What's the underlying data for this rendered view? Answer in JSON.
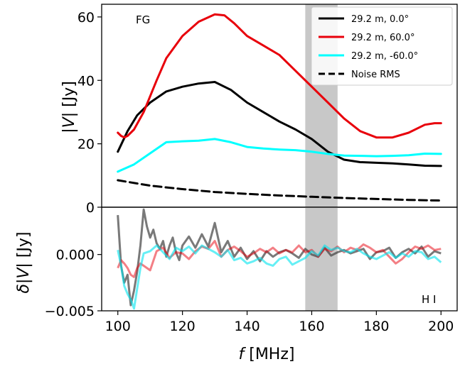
{
  "chart_data": [
    {
      "type": "line",
      "panel": "top",
      "xlim": [
        95,
        205
      ],
      "ylim": [
        0,
        64
      ],
      "yticks": [
        "0",
        "20",
        "40",
        "60"
      ],
      "ylabel": {
        "pre": "|",
        "var": "V",
        "post": "| [Jy]"
      },
      "annotation": "FG",
      "shaded_band": [
        158,
        168
      ],
      "grid": false,
      "legend_position": "top-right",
      "series": [
        {
          "name": "29.2 m, 0.0°",
          "color": "#000000",
          "style": "solid",
          "x": [
            100,
            103,
            106,
            110,
            115,
            120,
            125,
            130,
            135,
            140,
            145,
            150,
            155,
            160,
            165,
            170,
            175,
            180,
            185,
            190,
            195,
            200
          ],
          "y": [
            17.5,
            24,
            29,
            33,
            36.5,
            38,
            39,
            39.5,
            37,
            33,
            30,
            27,
            24.5,
            21.5,
            17.5,
            15,
            14.2,
            14,
            13.8,
            13.5,
            13.1,
            13
          ]
        },
        {
          "name": "29.2 m, 60.0°",
          "color": "#e8000b",
          "style": "solid",
          "x": [
            100,
            101,
            102,
            103,
            105,
            108,
            112,
            115,
            120,
            125,
            130,
            133,
            136,
            140,
            145,
            150,
            155,
            160,
            165,
            170,
            175,
            180,
            185,
            190,
            195,
            198,
            200
          ],
          "y": [
            23.5,
            22.5,
            22,
            22.5,
            24.5,
            30,
            40,
            47,
            54,
            58.5,
            60.8,
            60.5,
            58,
            54,
            51,
            48,
            43,
            38,
            33,
            28,
            24,
            22,
            22,
            23.5,
            26,
            26.5,
            26.5
          ]
        },
        {
          "name": "29.2 m, -60.0°",
          "color": "#00ffff",
          "style": "solid",
          "x": [
            100,
            105,
            110,
            115,
            120,
            125,
            130,
            135,
            140,
            145,
            150,
            155,
            160,
            165,
            170,
            175,
            180,
            185,
            190,
            195,
            200
          ],
          "y": [
            11.2,
            13.5,
            17,
            20.5,
            20.8,
            21,
            21.5,
            20.5,
            19,
            18.5,
            18.2,
            18,
            17.5,
            16.8,
            16.3,
            16.2,
            16.1,
            16.2,
            16.4,
            16.9,
            16.8
          ]
        },
        {
          "name": "Noise RMS",
          "color": "#000000",
          "style": "dashed",
          "x": [
            100,
            110,
            120,
            130,
            140,
            150,
            160,
            170,
            180,
            190,
            200
          ],
          "y": [
            8.5,
            6.8,
            5.7,
            4.8,
            4.2,
            3.7,
            3.3,
            2.9,
            2.6,
            2.3,
            2.1
          ]
        }
      ]
    },
    {
      "type": "line",
      "panel": "bottom",
      "xlim": [
        95,
        205
      ],
      "ylim": [
        -0.005,
        0.0042
      ],
      "xticks": [
        "100",
        "120",
        "140",
        "160",
        "180",
        "200"
      ],
      "yticks": [
        "−0.005",
        "0.000"
      ],
      "xlabel": {
        "var": "f",
        "post": " [MHz]"
      },
      "ylabel": {
        "pre": "δ|",
        "var": "V",
        "post": "| [Jy]"
      },
      "annotation": "H I",
      "shaded_band": [
        158,
        168
      ],
      "grid": false,
      "series": [
        {
          "color": "#404040",
          "alpha": 0.7,
          "x": [
            100,
            101,
            102,
            103,
            104,
            105,
            106,
            107,
            108,
            109,
            110,
            111,
            112,
            113,
            114,
            115,
            116,
            117,
            118,
            119,
            120,
            122,
            124,
            126,
            128,
            130,
            132,
            134,
            136,
            138,
            140,
            142,
            144,
            146,
            148,
            150,
            152,
            154,
            156,
            158,
            160,
            162,
            164,
            166,
            168,
            170,
            172,
            174,
            176,
            178,
            180,
            182,
            184,
            186,
            188,
            190,
            192,
            194,
            196,
            198,
            200
          ],
          "y": [
            0.0035,
            -0.001,
            -0.0025,
            -0.0018,
            -0.0045,
            -0.0032,
            -0.0015,
            0.0008,
            0.004,
            0.0025,
            0.0015,
            0.0022,
            0.001,
            0.0005,
            0.0012,
            -0.0002,
            0.0008,
            0.0015,
            0.0002,
            -0.0005,
            0.0008,
            0.0016,
            0.0006,
            0.0018,
            0.0007,
            0.0028,
            0.0002,
            0.0012,
            -0.0002,
            0.0006,
            -0.0004,
            0.0003,
            -0.0006,
            0.0003,
            -0.0002,
            0.0002,
            0.0004,
            0.0001,
            -0.0003,
            0.0005,
            0.0,
            -0.0002,
            0.0006,
            -0.0001,
            0.0002,
            0.0004,
            0.0001,
            0.0003,
            0.0005,
            -0.0004,
            0.0002,
            0.0003,
            0.0006,
            -0.0003,
            0.0002,
            0.0005,
            0.0001,
            0.0007,
            -0.0002,
            0.0003,
            0.0001
          ]
        },
        {
          "color": "#e8000b",
          "alpha": 0.5,
          "x": [
            100,
            101,
            102,
            103,
            104,
            105,
            106,
            107,
            108,
            110,
            112,
            114,
            116,
            118,
            120,
            122,
            124,
            126,
            128,
            130,
            132,
            134,
            136,
            138,
            140,
            142,
            144,
            146,
            148,
            150,
            152,
            154,
            156,
            158,
            160,
            162,
            164,
            166,
            168,
            170,
            172,
            174,
            176,
            178,
            180,
            182,
            184,
            186,
            188,
            190,
            192,
            194,
            196,
            198,
            200
          ],
          "y": [
            -0.0012,
            -0.0005,
            -0.0008,
            -0.0012,
            -0.0018,
            -0.002,
            -0.0012,
            -0.0008,
            -0.001,
            -0.0014,
            0.0003,
            0.0006,
            -0.0003,
            0.0002,
            0.0001,
            -0.0004,
            0.0003,
            0.0007,
            0.0005,
            0.0012,
            -0.0002,
            0.0004,
            0.0007,
            0.0003,
            -0.0002,
            0.0001,
            0.0005,
            0.0002,
            0.0006,
            0.0001,
            0.0004,
            0.0002,
            0.0008,
            0.0002,
            0.0004,
            -0.0002,
            0.0005,
            0.0003,
            0.0007,
            0.0002,
            0.0006,
            0.0004,
            0.0009,
            0.0006,
            0.0002,
            0.0004,
            -0.0002,
            -0.0008,
            -0.0004,
            0.0002,
            0.0007,
            0.0005,
            0.0008,
            0.0004,
            0.0005
          ]
        },
        {
          "color": "#00e5ee",
          "alpha": 0.6,
          "x": [
            100,
            101,
            102,
            103,
            104,
            105,
            106,
            107,
            108,
            110,
            112,
            114,
            116,
            118,
            120,
            122,
            124,
            126,
            128,
            130,
            132,
            134,
            136,
            138,
            140,
            142,
            144,
            146,
            148,
            150,
            152,
            154,
            156,
            158,
            160,
            162,
            164,
            166,
            168,
            170,
            172,
            174,
            176,
            178,
            180,
            182,
            184,
            186,
            188,
            190,
            192,
            194,
            196,
            198,
            200
          ],
          "y": [
            0.0004,
            -0.001,
            -0.0028,
            -0.0035,
            -0.004,
            -0.0048,
            -0.003,
            -0.0012,
            0.0001,
            0.0003,
            0.0008,
            0.0002,
            -0.0004,
            0.0006,
            0.0003,
            0.0007,
            0.0001,
            0.0008,
            0.0005,
            0.0002,
            -0.0002,
            0.0004,
            -0.0005,
            -0.0003,
            -0.0008,
            -0.0006,
            -0.0003,
            -0.0008,
            -0.001,
            -0.0004,
            -0.0002,
            -0.0009,
            -0.0006,
            -0.0003,
            0.0003,
            -0.0001,
            0.0008,
            0.0004,
            0.0006,
            0.0003,
            0.0002,
            0.0005,
            0.0001,
            -0.0002,
            -0.0004,
            -0.0001,
            0.0002,
            -0.0003,
            0.0001,
            -0.0002,
            0.0003,
            0.0002,
            -0.0004,
            -0.0002,
            -0.0007
          ]
        }
      ]
    }
  ]
}
